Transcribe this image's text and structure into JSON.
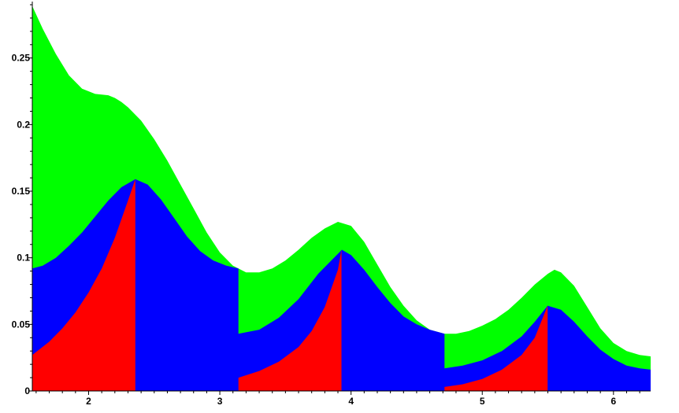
{
  "chart_data": {
    "type": "area",
    "title": "",
    "xlabel": "",
    "ylabel": "",
    "xlim": [
      1.5708,
      6.2832
    ],
    "ylim": [
      0,
      0.29
    ],
    "x_ticks": [
      "2",
      "3",
      "4",
      "5",
      "6"
    ],
    "x_tick_values": [
      2,
      3,
      4,
      5,
      6
    ],
    "y_ticks": [
      "0",
      "0.05",
      "0.1",
      "0.15",
      "0.2",
      "0.25"
    ],
    "y_tick_values": [
      0,
      0.05,
      0.1,
      0.15,
      0.2,
      0.25
    ],
    "colors": {
      "top": "#00ff00",
      "middle": "#0000ff",
      "bottom": "#ff0000"
    },
    "series": [
      {
        "color": "#00ff00",
        "points": [
          [
            1.571,
            0.289
          ],
          [
            1.65,
            0.272
          ],
          [
            1.75,
            0.253
          ],
          [
            1.85,
            0.237
          ],
          [
            1.95,
            0.227
          ],
          [
            2.05,
            0.223
          ],
          [
            2.15,
            0.222
          ],
          [
            2.2,
            0.22
          ],
          [
            2.25,
            0.217
          ],
          [
            2.3,
            0.213
          ],
          [
            2.4,
            0.203
          ],
          [
            2.5,
            0.189
          ],
          [
            2.6,
            0.173
          ],
          [
            2.7,
            0.155
          ],
          [
            2.8,
            0.137
          ],
          [
            2.9,
            0.119
          ],
          [
            3.0,
            0.104
          ],
          [
            3.1,
            0.094
          ],
          [
            3.2,
            0.089
          ],
          [
            3.3,
            0.089
          ],
          [
            3.4,
            0.092
          ],
          [
            3.5,
            0.098
          ],
          [
            3.6,
            0.106
          ],
          [
            3.7,
            0.115
          ],
          [
            3.8,
            0.122
          ],
          [
            3.9,
            0.127
          ],
          [
            4.0,
            0.124
          ],
          [
            4.1,
            0.112
          ],
          [
            4.2,
            0.095
          ],
          [
            4.3,
            0.078
          ],
          [
            4.4,
            0.064
          ],
          [
            4.5,
            0.053
          ],
          [
            4.6,
            0.046
          ],
          [
            4.712,
            0.043
          ],
          [
            4.8,
            0.043
          ],
          [
            4.9,
            0.045
          ],
          [
            5.0,
            0.049
          ],
          [
            5.1,
            0.054
          ],
          [
            5.2,
            0.061
          ],
          [
            5.3,
            0.07
          ],
          [
            5.4,
            0.08
          ],
          [
            5.5,
            0.088
          ],
          [
            5.55,
            0.091
          ],
          [
            5.6,
            0.089
          ],
          [
            5.7,
            0.079
          ],
          [
            5.8,
            0.063
          ],
          [
            5.9,
            0.047
          ],
          [
            6.0,
            0.036
          ],
          [
            6.1,
            0.03
          ],
          [
            6.2,
            0.027
          ],
          [
            6.283,
            0.026
          ]
        ]
      },
      {
        "color": "#0000ff",
        "points": [
          [
            1.571,
            0.092
          ],
          [
            1.65,
            0.094
          ],
          [
            1.75,
            0.1
          ],
          [
            1.85,
            0.109
          ],
          [
            1.95,
            0.119
          ],
          [
            2.05,
            0.131
          ],
          [
            2.15,
            0.143
          ],
          [
            2.25,
            0.153
          ],
          [
            2.356,
            0.159
          ],
          [
            2.45,
            0.155
          ],
          [
            2.55,
            0.144
          ],
          [
            2.65,
            0.13
          ],
          [
            2.75,
            0.116
          ],
          [
            2.85,
            0.105
          ],
          [
            2.95,
            0.098
          ],
          [
            3.05,
            0.094
          ],
          [
            3.1415,
            0.092
          ],
          [
            3.1417,
            0.043
          ],
          [
            3.3,
            0.046
          ],
          [
            3.45,
            0.055
          ],
          [
            3.6,
            0.069
          ],
          [
            3.75,
            0.088
          ],
          [
            3.9,
            0.103
          ],
          [
            3.93,
            0.106
          ],
          [
            4.0,
            0.102
          ],
          [
            4.1,
            0.091
          ],
          [
            4.2,
            0.078
          ],
          [
            4.3,
            0.066
          ],
          [
            4.4,
            0.056
          ],
          [
            4.5,
            0.05
          ],
          [
            4.6,
            0.046
          ],
          [
            4.7123,
            0.043
          ],
          [
            4.7125,
            0.017
          ],
          [
            4.85,
            0.019
          ],
          [
            5.0,
            0.023
          ],
          [
            5.15,
            0.03
          ],
          [
            5.3,
            0.041
          ],
          [
            5.4,
            0.052
          ],
          [
            5.498,
            0.064
          ],
          [
            5.6,
            0.061
          ],
          [
            5.7,
            0.052
          ],
          [
            5.8,
            0.041
          ],
          [
            5.9,
            0.031
          ],
          [
            6.0,
            0.024
          ],
          [
            6.1,
            0.019
          ],
          [
            6.2,
            0.017
          ],
          [
            6.283,
            0.016
          ]
        ]
      },
      {
        "color": "#ff0000",
        "points": [
          [
            1.571,
            0.027
          ],
          [
            1.7,
            0.037
          ],
          [
            1.8,
            0.047
          ],
          [
            1.9,
            0.059
          ],
          [
            2.0,
            0.074
          ],
          [
            2.1,
            0.092
          ],
          [
            2.2,
            0.115
          ],
          [
            2.3,
            0.143
          ],
          [
            2.356,
            0.159
          ],
          [
            2.3562,
            0
          ],
          [
            3.1417,
            0
          ],
          [
            3.1417,
            0.01
          ],
          [
            3.3,
            0.015
          ],
          [
            3.45,
            0.022
          ],
          [
            3.6,
            0.033
          ],
          [
            3.7,
            0.045
          ],
          [
            3.8,
            0.063
          ],
          [
            3.9,
            0.091
          ],
          [
            3.927,
            0.106
          ],
          [
            3.9272,
            0
          ],
          [
            4.7125,
            0
          ],
          [
            4.7125,
            0.003
          ],
          [
            4.85,
            0.005
          ],
          [
            5.0,
            0.009
          ],
          [
            5.15,
            0.016
          ],
          [
            5.3,
            0.027
          ],
          [
            5.4,
            0.04
          ],
          [
            5.498,
            0.064
          ],
          [
            5.4982,
            0
          ]
        ]
      }
    ]
  }
}
